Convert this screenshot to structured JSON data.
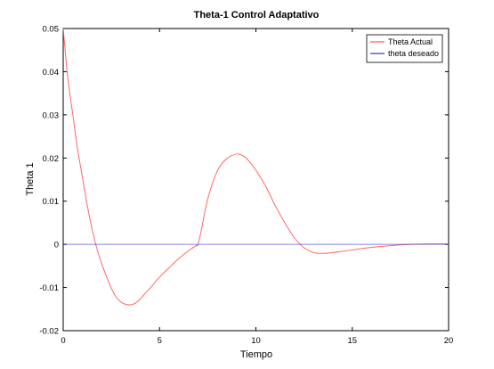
{
  "chart_data": {
    "type": "line",
    "title": "Theta-1 Control Adaptativo",
    "xlabel": "Tiempo",
    "ylabel": "Theta 1",
    "xlim": [
      0,
      20
    ],
    "ylim": [
      -0.02,
      0.05
    ],
    "xticks": [
      0,
      5,
      10,
      15,
      20
    ],
    "yticks": [
      -0.02,
      -0.01,
      0,
      0.01,
      0.02,
      0.03,
      0.04,
      0.05
    ],
    "xtick_labels": [
      "0",
      "5",
      "10",
      "15",
      "20"
    ],
    "ytick_labels": [
      "-0.02",
      "-0.01",
      "0",
      "0.01",
      "0.02",
      "0.03",
      "0.04",
      "0.05"
    ],
    "grid": false,
    "legend_position": "top-right",
    "series": [
      {
        "name": "Theta Actual",
        "color": "#ff5555",
        "x": [
          0,
          0.1,
          0.25,
          0.5,
          0.75,
          1.0,
          1.25,
          1.5,
          1.75,
          2.0,
          2.25,
          2.5,
          2.75,
          3.0,
          3.25,
          3.5,
          3.75,
          4.0,
          4.25,
          4.5,
          5.0,
          5.5,
          6.0,
          6.5,
          6.9,
          7.0,
          7.2,
          7.5,
          8.0,
          8.5,
          9.0,
          9.3,
          9.6,
          10.0,
          10.5,
          11.0,
          11.5,
          12.0,
          12.5,
          13.0,
          13.5,
          14.0,
          15.0,
          16.0,
          17.0,
          18.0,
          19.0,
          20.0
        ],
        "y": [
          0.05,
          0.045,
          0.038,
          0.03,
          0.022,
          0.0155,
          0.009,
          0.0035,
          -0.001,
          -0.0045,
          -0.0075,
          -0.0102,
          -0.0122,
          -0.0134,
          -0.0139,
          -0.014,
          -0.0136,
          -0.0127,
          -0.0114,
          -0.0102,
          -0.0076,
          -0.0054,
          -0.0033,
          -0.0015,
          -0.0003,
          0.0,
          0.004,
          0.0105,
          0.017,
          0.0199,
          0.0209,
          0.0206,
          0.0195,
          0.0172,
          0.0135,
          0.009,
          0.005,
          0.0015,
          -0.0008,
          -0.0019,
          -0.0021,
          -0.0019,
          -0.0013,
          -0.0007,
          -0.0003,
          0.0,
          0.0001,
          0.0001
        ]
      },
      {
        "name": "theta deseado",
        "color": "#3333cc",
        "x": [
          0,
          20
        ],
        "y": [
          0,
          0
        ]
      }
    ]
  }
}
